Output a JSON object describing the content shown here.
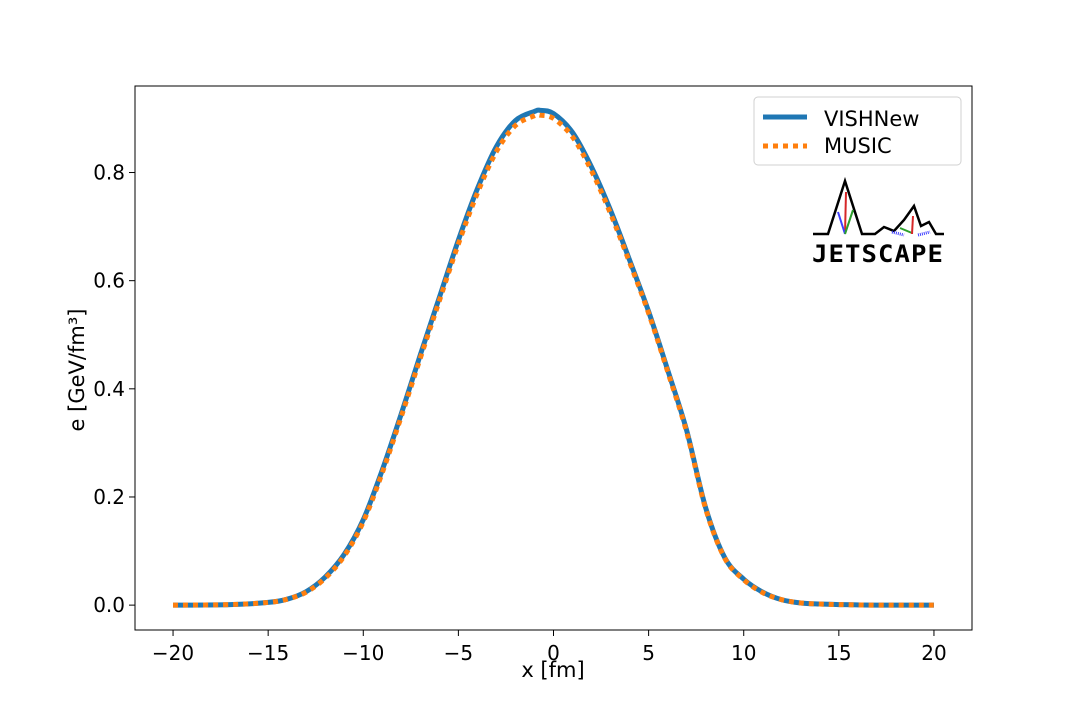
{
  "chart_data": {
    "type": "line",
    "title": "",
    "xlabel": "x [fm]",
    "ylabel": "e [GeV/fm³]",
    "xlim": [
      -22,
      22
    ],
    "ylim": [
      -0.046,
      0.96
    ],
    "x_ticks": [
      -20,
      -15,
      -10,
      -5,
      0,
      5,
      10,
      15,
      20
    ],
    "x_tick_labels": [
      "−20",
      "−15",
      "−10",
      "−5",
      "0",
      "5",
      "10",
      "15",
      "20"
    ],
    "y_ticks": [
      0.0,
      0.2,
      0.4,
      0.6,
      0.8
    ],
    "y_tick_labels": [
      "0.0",
      "0.2",
      "0.4",
      "0.6",
      "0.8"
    ],
    "grid": false,
    "legend_position": "top-right",
    "logo_text": "JETSCAPE",
    "series": [
      {
        "name": "VISHNew",
        "color": "#1f77b4",
        "style": "solid",
        "x": [
          -20,
          -17,
          -15,
          -14,
          -13,
          -12,
          -11,
          -10,
          -9,
          -8,
          -7,
          -6,
          -5,
          -4,
          -3,
          -2,
          -1,
          -0.7,
          0,
          1,
          2,
          3,
          4,
          5,
          6,
          7,
          8,
          9,
          10,
          11,
          12,
          13,
          14,
          15,
          17,
          20
        ],
        "y": [
          0.0,
          0.001,
          0.005,
          0.011,
          0.025,
          0.052,
          0.094,
          0.158,
          0.25,
          0.354,
          0.463,
          0.569,
          0.675,
          0.77,
          0.848,
          0.896,
          0.913,
          0.915,
          0.909,
          0.874,
          0.81,
          0.73,
          0.638,
          0.543,
          0.435,
          0.323,
          0.18,
          0.088,
          0.048,
          0.024,
          0.01,
          0.004,
          0.002,
          0.001,
          0.0,
          0.0
        ]
      },
      {
        "name": "MUSIC",
        "color": "#ff7f0e",
        "style": "dotted",
        "x": [
          -20,
          -17,
          -15,
          -14,
          -13,
          -12,
          -11,
          -10,
          -9,
          -8,
          -7,
          -6,
          -5,
          -4,
          -3,
          -2,
          -1,
          -0.7,
          0,
          1,
          2,
          3,
          4,
          5,
          6,
          7,
          8,
          9,
          10,
          11,
          12,
          13,
          14,
          15,
          17,
          20
        ],
        "y": [
          0.0,
          0.001,
          0.005,
          0.011,
          0.024,
          0.05,
          0.091,
          0.154,
          0.245,
          0.349,
          0.457,
          0.563,
          0.668,
          0.762,
          0.839,
          0.887,
          0.905,
          0.906,
          0.9,
          0.866,
          0.803,
          0.724,
          0.634,
          0.54,
          0.432,
          0.32,
          0.178,
          0.087,
          0.047,
          0.023,
          0.01,
          0.004,
          0.002,
          0.001,
          0.0,
          0.0
        ]
      }
    ]
  }
}
